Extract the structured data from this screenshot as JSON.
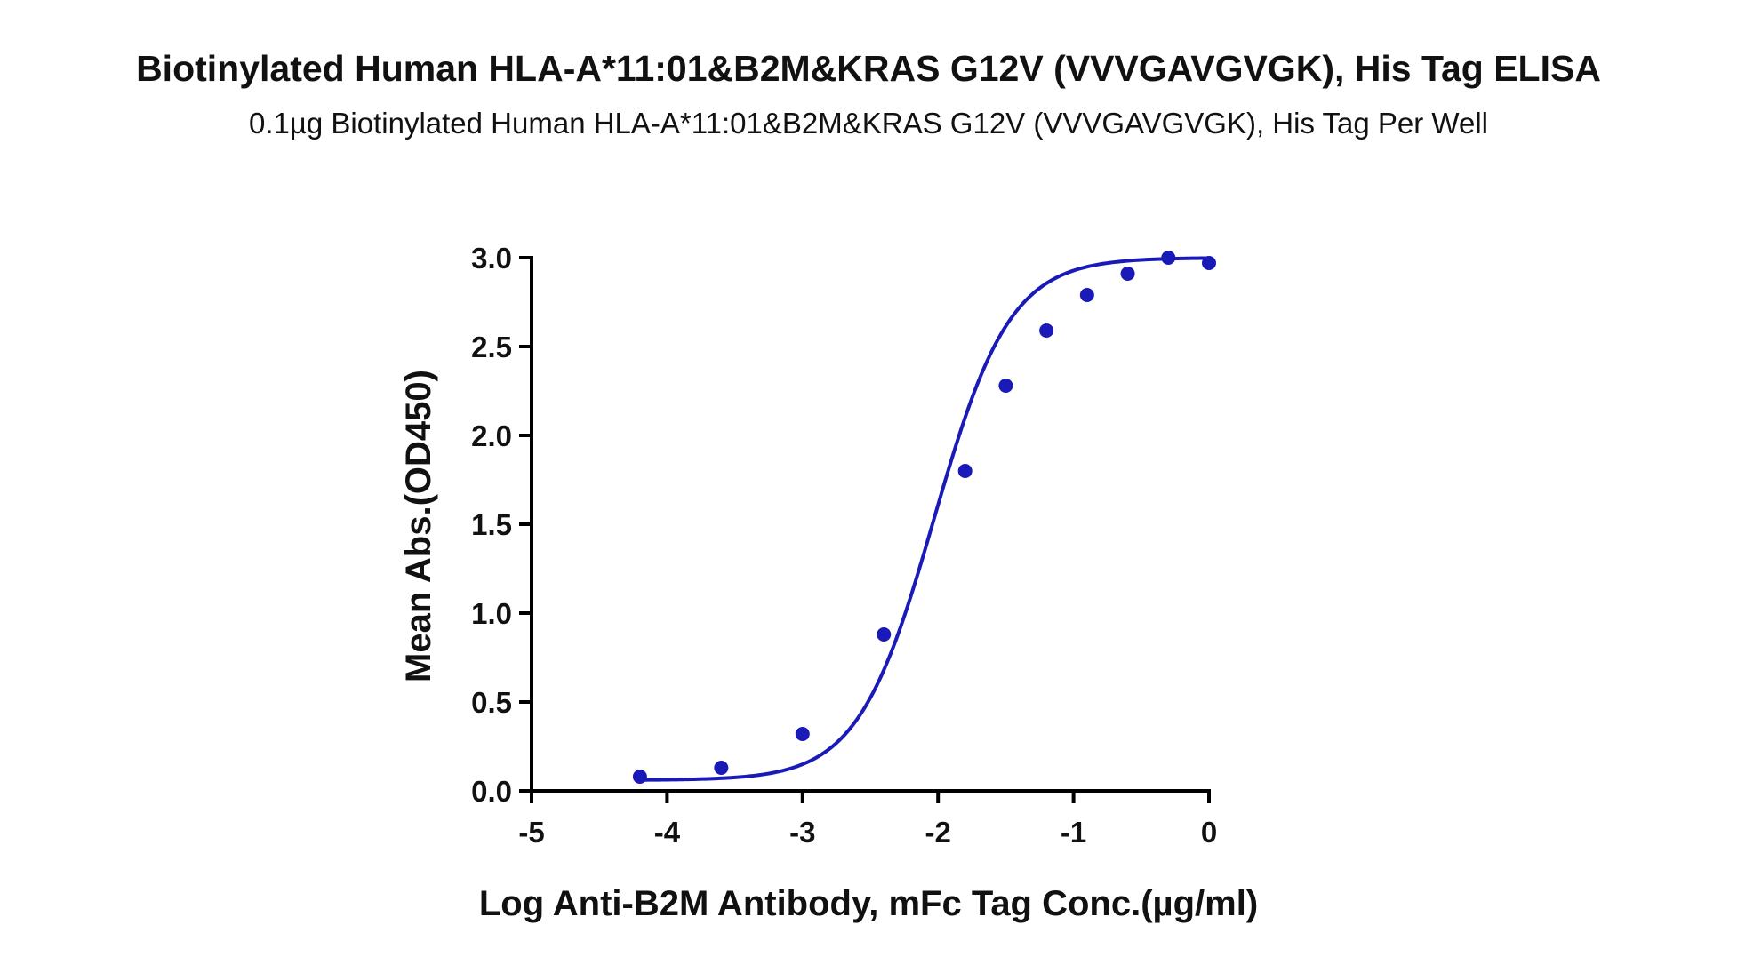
{
  "chart_data": {
    "type": "scatter",
    "title": "Biotinylated Human HLA-A*11:01&B2M&KRAS G12V (VVVGAVGVGK), His Tag ELISA",
    "subtitle": "0.1µg Biotinylated Human HLA-A*11:01&B2M&KRAS G12V (VVVGAVGVGK), His Tag Per Well",
    "xlabel": "Log Anti-B2M Antibody, mFc Tag Conc.(µg/ml)",
    "ylabel": "Mean Abs.(OD450)",
    "xlim": [
      -5,
      0
    ],
    "ylim": [
      0,
      3.0
    ],
    "x_ticks": [
      "-5",
      "-4",
      "-3",
      "-2",
      "-1",
      "0"
    ],
    "y_ticks": [
      "0.0",
      "0.5",
      "1.0",
      "1.5",
      "2.0",
      "2.5",
      "3.0"
    ],
    "grid": false,
    "colors": {
      "series": "#1a1ab8",
      "axis": "#000000"
    },
    "series": [
      {
        "x": [
          -4.2,
          -3.6,
          -3.0,
          -2.4,
          -1.8,
          -1.5,
          -1.2,
          -0.9,
          -0.6,
          -0.3,
          0.0
        ],
        "y": [
          0.08,
          0.13,
          0.32,
          0.88,
          1.8,
          2.28,
          2.59,
          2.79,
          2.91,
          3.0,
          2.97
        ],
        "fit": "4PL"
      }
    ]
  }
}
